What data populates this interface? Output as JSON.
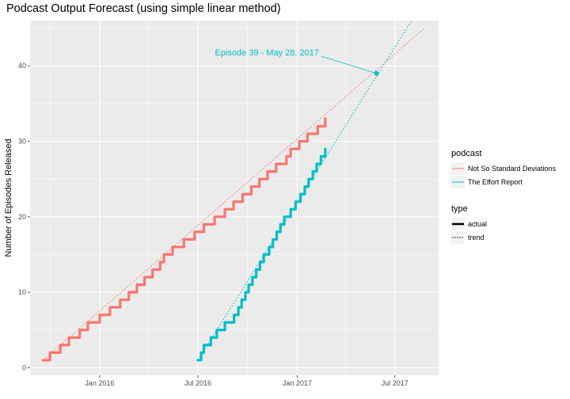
{
  "chart_data": {
    "type": "line",
    "title": "Podcast Output Forecast (using simple linear method)",
    "xlabel": "",
    "ylabel": "Number of Episodes Released",
    "xlim": [
      "2015-08-25",
      "2017-09-20"
    ],
    "ylim": [
      -1,
      46
    ],
    "x_ticks": [
      {
        "date": "2016-01-01",
        "label": "Jan 2016"
      },
      {
        "date": "2016-07-01",
        "label": "Jul 2016"
      },
      {
        "date": "2017-01-01",
        "label": "Jan 2017"
      },
      {
        "date": "2017-07-01",
        "label": "Jul 2017"
      }
    ],
    "y_ticks": [
      0,
      10,
      20,
      30,
      40
    ],
    "grid": true,
    "legend_placement": "right",
    "legends": [
      {
        "title": "podcast",
        "entries": [
          "Not So Standard Deviations",
          "The Effort Report"
        ]
      },
      {
        "title": "type",
        "entries": [
          "actual",
          "trend"
        ]
      }
    ],
    "colors": {
      "Not So Standard Deviations": "#f8766d",
      "The Effort Report": "#00bfc4"
    },
    "series": [
      {
        "name": "Not So Standard Deviations",
        "type": "actual",
        "points": [
          [
            "2015-09-18",
            1
          ],
          [
            "2015-10-01",
            2
          ],
          [
            "2015-10-20",
            3
          ],
          [
            "2015-11-05",
            4
          ],
          [
            "2015-11-25",
            5
          ],
          [
            "2015-12-10",
            6
          ],
          [
            "2016-01-01",
            7
          ],
          [
            "2016-01-20",
            8
          ],
          [
            "2016-02-08",
            9
          ],
          [
            "2016-02-24",
            10
          ],
          [
            "2016-03-10",
            11
          ],
          [
            "2016-03-24",
            12
          ],
          [
            "2016-04-08",
            13
          ],
          [
            "2016-04-22",
            14
          ],
          [
            "2016-04-29",
            15
          ],
          [
            "2016-05-15",
            16
          ],
          [
            "2016-06-05",
            17
          ],
          [
            "2016-06-25",
            18
          ],
          [
            "2016-07-12",
            19
          ],
          [
            "2016-08-01",
            20
          ],
          [
            "2016-08-20",
            21
          ],
          [
            "2016-09-05",
            22
          ],
          [
            "2016-09-22",
            23
          ],
          [
            "2016-10-08",
            24
          ],
          [
            "2016-10-23",
            25
          ],
          [
            "2016-11-07",
            26
          ],
          [
            "2016-11-23",
            27
          ],
          [
            "2016-12-12",
            28
          ],
          [
            "2016-12-20",
            29
          ],
          [
            "2017-01-05",
            30
          ],
          [
            "2017-01-20",
            31
          ],
          [
            "2017-02-08",
            32
          ],
          [
            "2017-02-22",
            33
          ]
        ]
      },
      {
        "name": "Not So Standard Deviations",
        "type": "trend",
        "points": [
          [
            "2015-09-18",
            1
          ],
          [
            "2017-08-25",
            45
          ]
        ]
      },
      {
        "name": "The Effort Report",
        "type": "actual",
        "points": [
          [
            "2016-07-01",
            1
          ],
          [
            "2016-07-07",
            2
          ],
          [
            "2016-07-12",
            3
          ],
          [
            "2016-07-25",
            4
          ],
          [
            "2016-08-05",
            5
          ],
          [
            "2016-08-20",
            6
          ],
          [
            "2016-09-06",
            7
          ],
          [
            "2016-09-14",
            8
          ],
          [
            "2016-09-20",
            9
          ],
          [
            "2016-09-27",
            10
          ],
          [
            "2016-10-03",
            11
          ],
          [
            "2016-10-10",
            12
          ],
          [
            "2016-10-17",
            13
          ],
          [
            "2016-10-24",
            14
          ],
          [
            "2016-10-31",
            15
          ],
          [
            "2016-11-10",
            16
          ],
          [
            "2016-11-17",
            17
          ],
          [
            "2016-11-24",
            18
          ],
          [
            "2016-12-01",
            19
          ],
          [
            "2016-12-08",
            20
          ],
          [
            "2016-12-20",
            21
          ],
          [
            "2016-12-29",
            22
          ],
          [
            "2017-01-07",
            23
          ],
          [
            "2017-01-15",
            24
          ],
          [
            "2017-01-22",
            25
          ],
          [
            "2017-01-30",
            26
          ],
          [
            "2017-02-06",
            27
          ],
          [
            "2017-02-14",
            28
          ],
          [
            "2017-02-22",
            29
          ]
        ]
      },
      {
        "name": "The Effort Report",
        "type": "trend",
        "points": [
          [
            "2016-07-01",
            1
          ],
          [
            "2017-08-01",
            46
          ]
        ]
      }
    ],
    "annotations": [
      {
        "text": "Episode 39  -  May 28, 2017",
        "date": "2017-05-28",
        "value": 39,
        "color": "#00bfc4"
      }
    ]
  }
}
